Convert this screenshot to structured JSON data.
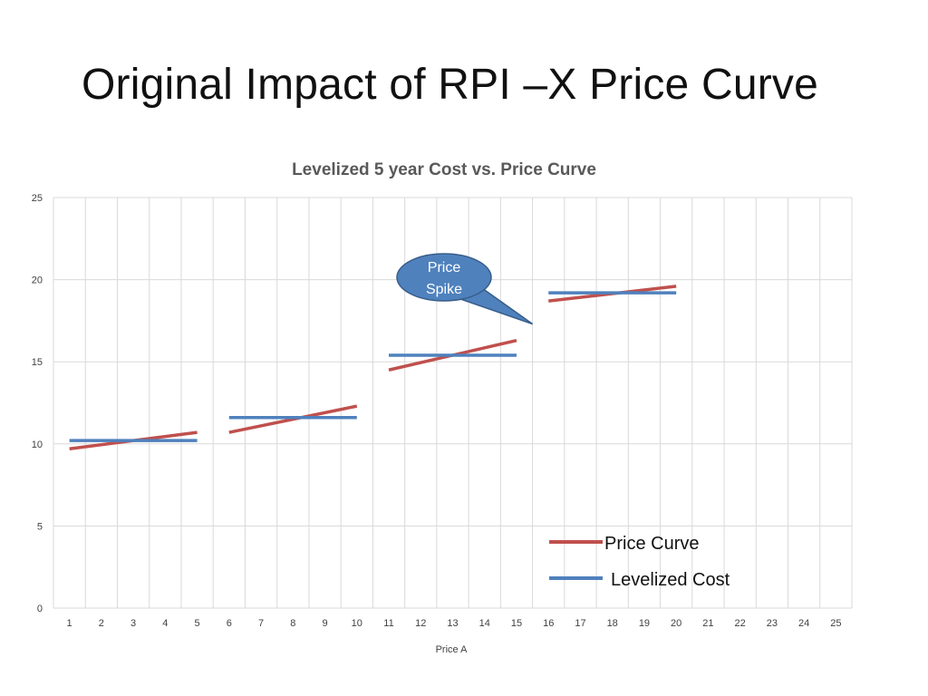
{
  "slide": {
    "title": "Original Impact of RPI –X Price Curve"
  },
  "colors": {
    "price_curve": "#C0504D",
    "levelized_cost": "#4F81BD",
    "callout_fill": "#4F81BD",
    "callout_stroke": "#385D8A",
    "grid": "#D9D9D9"
  },
  "chart_data": {
    "type": "line",
    "title": "Levelized 5 year Cost vs. Price Curve",
    "xlabel": "Price A",
    "ylabel": "",
    "categories": [
      1,
      2,
      3,
      4,
      5,
      6,
      7,
      8,
      9,
      10,
      11,
      12,
      13,
      14,
      15,
      16,
      17,
      18,
      19,
      20,
      21,
      22,
      23,
      24,
      25
    ],
    "ylim": [
      0,
      25
    ],
    "yticks": [
      0,
      5,
      10,
      15,
      20,
      25
    ],
    "grid": true,
    "legend_position": "bottom-right",
    "series": [
      {
        "name": "Price Curve",
        "color": "#C0504D",
        "segments": [
          [
            [
              1,
              9.7
            ],
            [
              5,
              10.7
            ]
          ],
          [
            [
              6,
              10.7
            ],
            [
              10,
              12.3
            ]
          ],
          [
            [
              11,
              14.5
            ],
            [
              15,
              16.3
            ]
          ],
          [
            [
              16,
              18.7
            ],
            [
              20,
              19.6
            ]
          ]
        ]
      },
      {
        "name": "Levelized Cost",
        "color": "#4F81BD",
        "segments": [
          [
            [
              1,
              10.2
            ],
            [
              5,
              10.2
            ]
          ],
          [
            [
              6,
              11.6
            ],
            [
              10,
              11.6
            ]
          ],
          [
            [
              11,
              15.4
            ],
            [
              15,
              15.4
            ]
          ],
          [
            [
              16,
              19.2
            ],
            [
              20,
              19.2
            ]
          ]
        ]
      }
    ],
    "annotations": [
      {
        "text_lines": [
          "Price",
          "Spike"
        ],
        "points_to": [
          15.5,
          17.3
        ]
      }
    ]
  }
}
